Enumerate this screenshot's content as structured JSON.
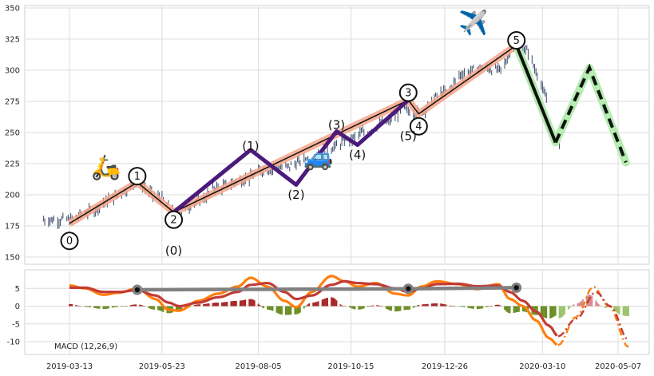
{
  "chart_data": [
    {
      "type": "line",
      "panel": "price",
      "ylim": [
        140,
        352
      ],
      "yticks": [
        150,
        175,
        200,
        225,
        250,
        275,
        300,
        325,
        350
      ],
      "grid": true,
      "price_path": [
        [
          "2019-03-13",
          180
        ],
        [
          "2019-03-28",
          186
        ],
        [
          "2019-04-15",
          197
        ],
        [
          "2019-04-25",
          204
        ],
        [
          "2019-05-03",
          210
        ],
        [
          "2019-05-20",
          198
        ],
        [
          "2019-06-03",
          185
        ],
        [
          "2019-06-20",
          195
        ],
        [
          "2019-07-05",
          206
        ],
        [
          "2019-07-25",
          212
        ],
        [
          "2019-08-10",
          220
        ],
        [
          "2019-08-25",
          222
        ],
        [
          "2019-09-10",
          228
        ],
        [
          "2019-09-30",
          238
        ],
        [
          "2019-10-15",
          245
        ],
        [
          "2019-10-25",
          250
        ],
        [
          "2019-11-10",
          258
        ],
        [
          "2019-11-25",
          268
        ],
        [
          "2019-12-05",
          266
        ],
        [
          "2019-12-26",
          282
        ],
        [
          "2020-01-10",
          298
        ],
        [
          "2020-01-24",
          302
        ],
        [
          "2020-02-06",
          300
        ],
        [
          "2020-02-19",
          322
        ],
        [
          "2020-02-28",
          315
        ],
        [
          "2020-03-05",
          300
        ],
        [
          "2020-03-12",
          280
        ],
        [
          "2020-03-18",
          245
        ],
        [
          "2020-03-23",
          240
        ]
      ],
      "trend_path": [
        [
          "2019-03-13",
          177
        ],
        [
          "2019-05-04",
          210
        ],
        [
          "2019-06-01",
          186
        ],
        [
          "2019-11-28",
          276
        ],
        [
          "2019-12-06",
          265
        ],
        [
          "2020-02-19",
          320
        ]
      ],
      "wave_points": [
        {
          "label": "0",
          "date": "2019-03-13",
          "value": 177,
          "label_value": 163,
          "circled": true
        },
        {
          "label": "1",
          "date": "2019-05-04",
          "value": 210,
          "label_value": 215,
          "circled": true
        },
        {
          "label": "2",
          "date": "2019-06-01",
          "value": 186,
          "label_value": 180,
          "circled": true
        },
        {
          "label": "3",
          "date": "2019-11-28",
          "value": 276,
          "label_value": 282,
          "circled": true
        },
        {
          "label": "4",
          "date": "2019-12-06",
          "value": 265,
          "label_value": 255,
          "circled": true
        },
        {
          "label": "5",
          "date": "2020-02-19",
          "value": 320,
          "label_value": 324,
          "circled": true
        }
      ],
      "subwave_path": [
        [
          "2019-06-01",
          186
        ],
        [
          "2019-07-30",
          236
        ],
        [
          "2019-09-03",
          208
        ],
        [
          "2019-10-04",
          251
        ],
        [
          "2019-10-20",
          240
        ],
        [
          "2019-11-28",
          276
        ]
      ],
      "subwave_labels": [
        {
          "label": "(0)",
          "date": "2019-06-01",
          "value": 155
        },
        {
          "label": "(1)",
          "date": "2019-07-30",
          "value": 239
        },
        {
          "label": "(2)",
          "date": "2019-09-03",
          "value": 200
        },
        {
          "label": "(3)",
          "date": "2019-10-04",
          "value": 256
        },
        {
          "label": "(4)",
          "date": "2019-10-20",
          "value": 232
        },
        {
          "label": "(5)",
          "date": "2019-11-28",
          "value": 247
        }
      ],
      "forecast_path": [
        [
          "2020-02-19",
          320
        ],
        [
          "2020-03-20",
          242
        ],
        [
          "2020-04-15",
          302
        ],
        [
          "2020-05-13",
          226
        ]
      ],
      "emoji_labels": [
        {
          "glyph": "🛵",
          "date": "2019-04-10",
          "value": 222
        },
        {
          "glyph": "🚙",
          "date": "2019-09-20",
          "value": 230
        },
        {
          "glyph": "✈️",
          "date": "2020-01-17",
          "value": 338
        }
      ]
    },
    {
      "type": "line",
      "panel": "macd",
      "label": "MACD (12,26,9)",
      "ylim": [
        -13,
        9.5
      ],
      "yticks": [
        -10,
        -5,
        0,
        5
      ],
      "x_tick_labels": [
        "2019-03-13",
        "2019-05-23",
        "2019-08-05",
        "2019-10-15",
        "2019-12-26",
        "2020-03-10",
        "2020-05-07"
      ],
      "grid": true,
      "series": [
        {
          "role": "macd",
          "color": "#ff7f0e",
          "values": [
            [
              "2019-03-13",
              5.8
            ],
            [
              "2019-03-25",
              5.0
            ],
            [
              "2019-04-08",
              3.2
            ],
            [
              "2019-04-20",
              3.8
            ],
            [
              "2019-05-04",
              5.0
            ],
            [
              "2019-05-18",
              2.0
            ],
            [
              "2019-05-28",
              -1.0
            ],
            [
              "2019-06-05",
              -1.3
            ],
            [
              "2019-06-20",
              1.5
            ],
            [
              "2019-07-05",
              3.5
            ],
            [
              "2019-07-20",
              5.5
            ],
            [
              "2019-07-30",
              8.0
            ],
            [
              "2019-08-12",
              5.5
            ],
            [
              "2019-08-25",
              1.5
            ],
            [
              "2019-09-03",
              -0.3
            ],
            [
              "2019-09-15",
              4.0
            ],
            [
              "2019-09-30",
              8.5
            ],
            [
              "2019-10-10",
              7.0
            ],
            [
              "2019-10-20",
              5.5
            ],
            [
              "2019-11-03",
              6.5
            ],
            [
              "2019-11-18",
              3.5
            ],
            [
              "2019-11-28",
              3.0
            ],
            [
              "2019-12-08",
              5.5
            ],
            [
              "2019-12-20",
              7.0
            ],
            [
              "2020-01-05",
              6.2
            ],
            [
              "2020-01-20",
              4.8
            ],
            [
              "2020-02-05",
              6.2
            ],
            [
              "2020-02-14",
              2.0
            ],
            [
              "2020-02-24",
              0.0
            ],
            [
              "2020-03-05",
              -4.0
            ],
            [
              "2020-03-15",
              -9.0
            ],
            [
              "2020-03-22",
              -11.0
            ]
          ]
        },
        {
          "role": "signal",
          "color": "#c23b33",
          "values": [
            [
              "2019-03-13",
              5.2
            ],
            [
              "2019-03-25",
              5.2
            ],
            [
              "2019-04-08",
              4.0
            ],
            [
              "2019-04-20",
              4.0
            ],
            [
              "2019-05-04",
              4.5
            ],
            [
              "2019-05-18",
              3.0
            ],
            [
              "2019-05-28",
              1.0
            ],
            [
              "2019-06-05",
              0.0
            ],
            [
              "2019-06-20",
              1.0
            ],
            [
              "2019-07-05",
              2.5
            ],
            [
              "2019-07-20",
              4.0
            ],
            [
              "2019-07-30",
              6.0
            ],
            [
              "2019-08-12",
              6.5
            ],
            [
              "2019-08-25",
              4.0
            ],
            [
              "2019-09-03",
              2.0
            ],
            [
              "2019-09-15",
              3.0
            ],
            [
              "2019-09-30",
              6.0
            ],
            [
              "2019-10-10",
              7.0
            ],
            [
              "2019-10-20",
              6.5
            ],
            [
              "2019-11-03",
              6.2
            ],
            [
              "2019-11-18",
              5.0
            ],
            [
              "2019-11-28",
              4.0
            ],
            [
              "2019-12-08",
              5.0
            ],
            [
              "2019-12-20",
              6.2
            ],
            [
              "2020-01-05",
              6.3
            ],
            [
              "2020-01-20",
              5.6
            ],
            [
              "2020-02-05",
              5.8
            ],
            [
              "2020-02-14",
              4.0
            ],
            [
              "2020-02-24",
              1.5
            ],
            [
              "2020-03-05",
              -1.5
            ],
            [
              "2020-03-15",
              -5.5
            ],
            [
              "2020-03-22",
              -8.5
            ]
          ]
        }
      ],
      "forecast": {
        "macd": [
          [
            "2020-03-22",
            -11.0
          ],
          [
            "2020-04-05",
            -3.0
          ],
          [
            "2020-04-18",
            5.5
          ],
          [
            "2020-04-30",
            0.0
          ],
          [
            "2020-05-15",
            -11.5
          ]
        ],
        "signal": [
          [
            "2020-03-22",
            -8.5
          ],
          [
            "2020-04-05",
            -3.5
          ],
          [
            "2020-04-20",
            4.0
          ],
          [
            "2020-05-01",
            0.0
          ],
          [
            "2020-05-15",
            -9.5
          ]
        ]
      },
      "peak_line": [
        [
          "2019-05-04",
          4.6
        ],
        [
          "2019-11-28",
          4.9
        ],
        [
          "2020-02-19",
          5.2
        ]
      ],
      "colors": {
        "hist_up": "#a82727",
        "hist_down": "#6b8e23",
        "hist_forecast_up": "#d98a8a",
        "hist_forecast_down": "#9ec46b"
      }
    }
  ]
}
